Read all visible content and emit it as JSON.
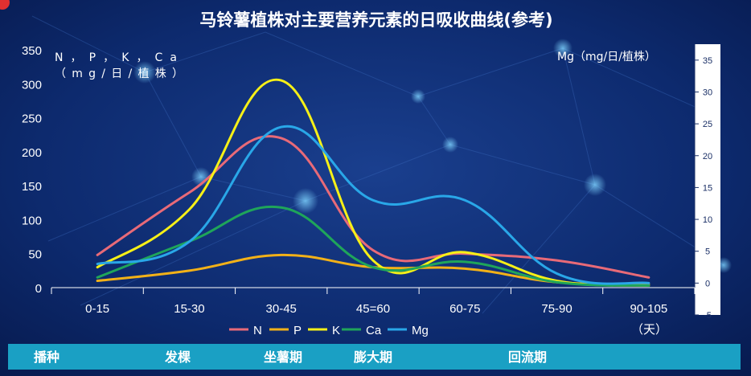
{
  "chart_data": {
    "type": "line",
    "title": "马铃薯植株对主要营养元素的日吸收曲线(参考)",
    "categories": [
      "0-15",
      "15-30",
      "30-45",
      "45=60",
      "60-75",
      "75-90",
      "90-105"
    ],
    "x_unit": "（天）",
    "ylabel_left": [
      "N ， P ， K ， C a",
      "（ m g / 日 / 植 株 ）"
    ],
    "ylabel_right": "Mg（mg/日/植株）",
    "ylim_left": [
      0,
      350
    ],
    "yticks_left": [
      "0",
      "50",
      "100",
      "150",
      "200",
      "250",
      "300",
      "350"
    ],
    "ylim_right": [
      -5,
      37.5
    ],
    "yticks_right": [
      "-5",
      "0",
      "5",
      "10",
      "15",
      "20",
      "25",
      "30",
      "35"
    ],
    "smooth": true,
    "grid": false,
    "legend_position": "bottom",
    "series": [
      {
        "name": "N",
        "color": "#e86a78",
        "axis": "left",
        "values": [
          48,
          140,
          220,
          55,
          50,
          40,
          15
        ]
      },
      {
        "name": "P",
        "color": "#f2b118",
        "axis": "left",
        "values": [
          10,
          25,
          48,
          30,
          28,
          8,
          5
        ]
      },
      {
        "name": "K",
        "color": "#f6f017",
        "axis": "left",
        "values": [
          30,
          115,
          305,
          40,
          52,
          10,
          3
        ]
      },
      {
        "name": "Ca",
        "color": "#1fa55a",
        "axis": "left",
        "values": [
          15,
          68,
          118,
          30,
          38,
          8,
          3
        ]
      },
      {
        "name": "Mg",
        "color": "#29a7e8",
        "axis": "right",
        "values": [
          3,
          6.5,
          24.5,
          13,
          13,
          1.5,
          0
        ]
      }
    ]
  },
  "stages": [
    "播种",
    "发棵",
    "坐薯期",
    "膨大期",
    "回流期"
  ]
}
